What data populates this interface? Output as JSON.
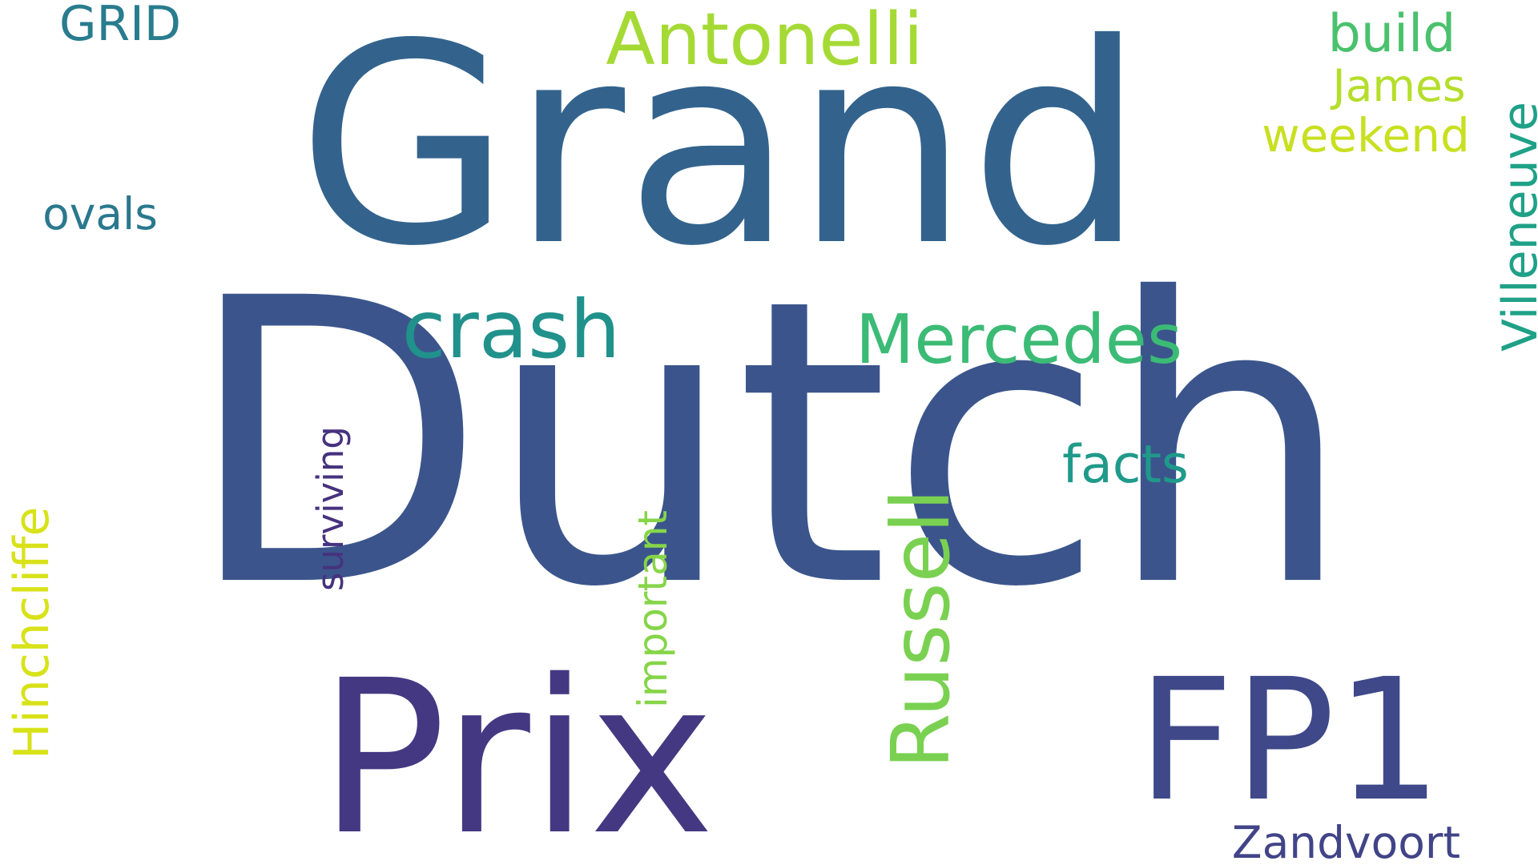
{
  "words": [
    {
      "id": "dutch",
      "text": "Dutch",
      "color": "#3b558c",
      "orientation": "horizontal"
    },
    {
      "id": "grand",
      "text": "Grand",
      "color": "#33638d",
      "orientation": "horizontal"
    },
    {
      "id": "prix",
      "text": "Prix",
      "color": "#453882",
      "orientation": "horizontal"
    },
    {
      "id": "fp1",
      "text": "FP1",
      "color": "#3f4889",
      "orientation": "horizontal"
    },
    {
      "id": "antonelli",
      "text": "Antonelli",
      "color": "#a5da35",
      "orientation": "horizontal"
    },
    {
      "id": "mercedes",
      "text": "Mercedes",
      "color": "#3bbb75",
      "orientation": "horizontal"
    },
    {
      "id": "crash",
      "text": "crash",
      "color": "#21918c",
      "orientation": "horizontal"
    },
    {
      "id": "russell",
      "text": "Russell",
      "color": "#7ad151",
      "orientation": "vertical"
    },
    {
      "id": "villeneuve",
      "text": "Villeneuve",
      "color": "#1fa187",
      "orientation": "vertical"
    },
    {
      "id": "hinchcliffe",
      "text": "Hinchcliffe",
      "color": "#d8e219",
      "orientation": "vertical"
    },
    {
      "id": "surviving",
      "text": "surviving",
      "color": "#46327e",
      "orientation": "vertical"
    },
    {
      "id": "important",
      "text": "important",
      "color": "#86d549",
      "orientation": "vertical"
    },
    {
      "id": "facts",
      "text": "facts",
      "color": "#1f9a8a",
      "orientation": "horizontal"
    },
    {
      "id": "build",
      "text": "build",
      "color": "#4ac16d",
      "orientation": "horizontal"
    },
    {
      "id": "james",
      "text": "James",
      "color": "#b5de2b",
      "orientation": "horizontal"
    },
    {
      "id": "weekend",
      "text": "weekend",
      "color": "#c8e020",
      "orientation": "horizontal"
    },
    {
      "id": "ovals",
      "text": "ovals",
      "color": "#2a788e",
      "orientation": "horizontal"
    },
    {
      "id": "grid",
      "text": "GRID",
      "color": "#287c8e",
      "orientation": "horizontal"
    },
    {
      "id": "zandvoort",
      "text": "Zandvoort",
      "color": "#414487",
      "orientation": "horizontal"
    }
  ]
}
